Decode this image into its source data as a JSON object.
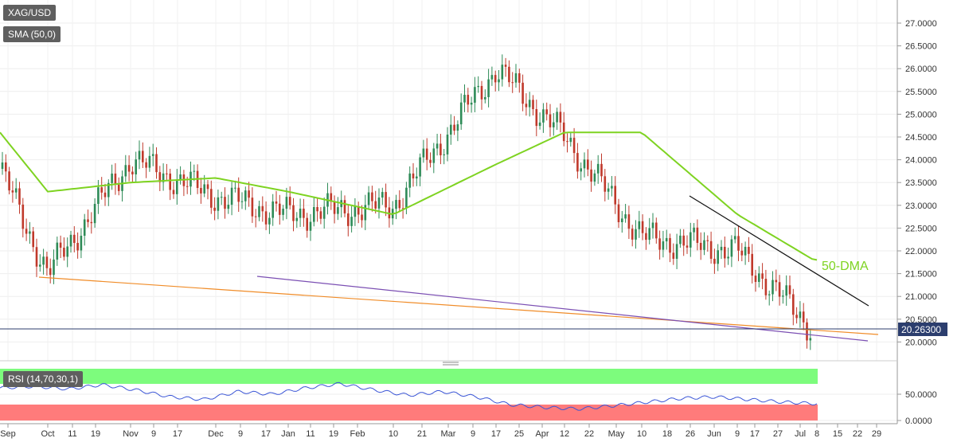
{
  "main_chart": {
    "symbol_label": "XAG/USD",
    "sma_label": "SMA (50,0)",
    "ma_annotation": "50-DMA",
    "current_price_label": "20.26300",
    "y_ticks": [
      "27.0000",
      "26.5000",
      "26.0000",
      "25.5000",
      "25.0000",
      "24.5000",
      "24.0000",
      "23.5000",
      "23.0000",
      "22.5000",
      "22.0000",
      "21.5000",
      "21.0000",
      "20.5000",
      "20.0000"
    ],
    "x_ticks": [
      "Sep",
      "Oct",
      "11",
      "19",
      "Nov",
      "9",
      "17",
      "Dec",
      "9",
      "17",
      "Jan",
      "11",
      "19",
      "Feb",
      "10",
      "21",
      "Mar",
      "9",
      "17",
      "25",
      "Apr",
      "12",
      "22",
      "May",
      "10",
      "18",
      "26",
      "Jun",
      "9",
      "17",
      "27",
      "Jul",
      "8",
      "15",
      "22",
      "29"
    ],
    "colors": {
      "up": "#2e8b57",
      "down": "#c0392b",
      "sma": "#7ed321",
      "resistance": "#111111",
      "support_orange": "#f08c28",
      "support_purple": "#7b4fb3",
      "price_line": "#2c3e6e"
    }
  },
  "rsi_panel": {
    "label": "RSI (14,70,30,1)",
    "y_ticks": [
      "50.0000",
      "0.0000"
    ],
    "colors": {
      "overbought": "#7dfc7d",
      "oversold": "#ff7b7b",
      "line": "#3a55d6"
    }
  },
  "chart_data": [
    {
      "type": "line",
      "series": [
        {
          "name": "XAG/USD",
          "x": [
            "Sep",
            "Oct",
            "Nov",
            "Dec",
            "Jan",
            "Feb",
            "Mar",
            "Apr",
            "May",
            "Jun",
            "Jul"
          ],
          "values": [
            23.8,
            21.5,
            24.0,
            23.2,
            22.8,
            23.0,
            26.0,
            24.5,
            22.3,
            22.0,
            20.26
          ]
        },
        {
          "name": "SMA (50,0)",
          "x": [
            "Sep",
            "Oct",
            "Nov",
            "Dec",
            "Jan",
            "Feb",
            "Mar",
            "Apr",
            "May",
            "Jun",
            "Jul"
          ],
          "values": [
            24.6,
            23.3,
            23.5,
            23.6,
            23.3,
            22.8,
            23.9,
            24.6,
            24.6,
            22.8,
            21.8
          ]
        }
      ],
      "ylim": [
        19.8,
        27.2
      ],
      "grid": true
    },
    {
      "type": "line",
      "series": [
        {
          "name": "RSI (14,70,30,1)",
          "values": [
            62,
            65,
            60,
            68,
            58,
            45,
            40,
            55,
            50,
            62,
            70,
            58,
            48,
            55,
            45,
            30,
            25,
            22,
            28,
            35,
            42,
            45,
            40,
            35,
            32
          ]
        }
      ],
      "ylim": [
        0,
        100
      ],
      "grid": true
    }
  ]
}
